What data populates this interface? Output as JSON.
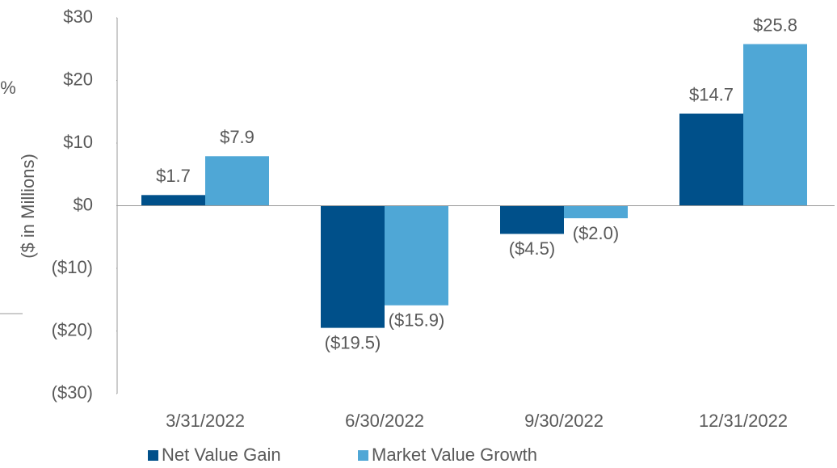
{
  "chart_data": {
    "type": "bar",
    "y_label": "($ in Millions)",
    "annotations": [
      "%"
    ],
    "categories": [
      "3/31/2022",
      "6/30/2022",
      "9/30/2022",
      "12/31/2022"
    ],
    "series": [
      {
        "name": "Net Value Gain",
        "color": "#00508a",
        "values": [
          1.7,
          -19.5,
          -4.5,
          14.7
        ],
        "value_labels": [
          "$1.7",
          "($19.5)",
          "($4.5)",
          "$14.7"
        ]
      },
      {
        "name": "Market Value Growth",
        "color": "#4fa7d6",
        "values": [
          7.9,
          -15.9,
          -2.0,
          25.8
        ],
        "value_labels": [
          "$7.9",
          "($15.9)",
          "($2.0)",
          "$25.8"
        ]
      }
    ],
    "ylim": [
      -30,
      30
    ],
    "yticks": [
      {
        "value": 30,
        "label": "$30"
      },
      {
        "value": 20,
        "label": "$20"
      },
      {
        "value": 10,
        "label": "$10"
      },
      {
        "value": 0,
        "label": "$0"
      },
      {
        "value": -10,
        "label": "($10)"
      },
      {
        "value": -20,
        "label": "($20)"
      },
      {
        "value": -30,
        "label": "($30)"
      }
    ],
    "legend": "bottom"
  }
}
